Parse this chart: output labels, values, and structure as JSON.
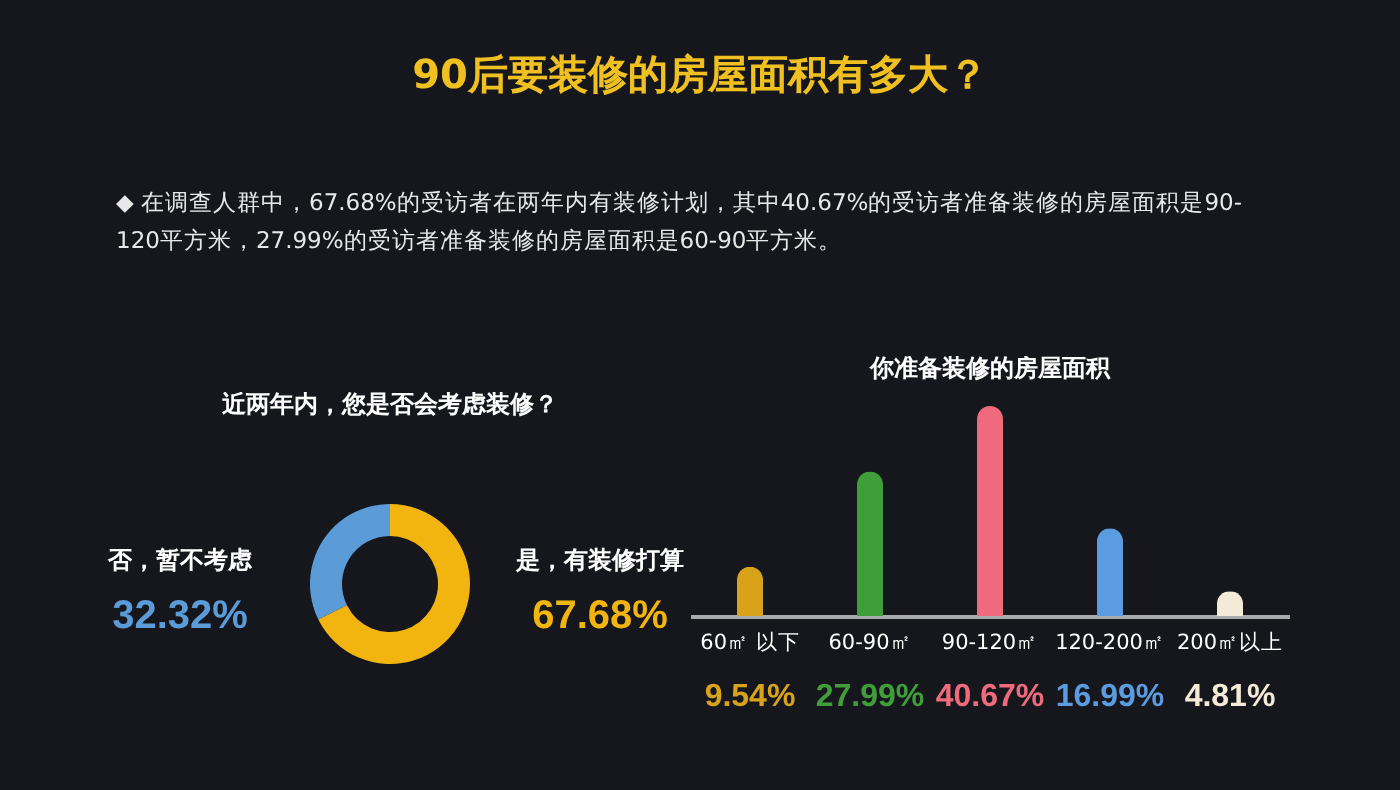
{
  "chart_data": [
    {
      "type": "other",
      "title": "90后要装修的房屋面积有多大？",
      "annotations": [
        "◆ 在调查人群中，67.68%的受访者在两年内有装修计划，其中40.67%的受访者准备装修的房屋面积是90-\n120平方米，27.99%的受访者准备装修的房屋面积是60-90平方米。"
      ]
    },
    {
      "type": "donut",
      "title": "近两年内，您是否会考虑装修？",
      "categories": [
        "否，暂不考虑",
        "是，有装修打算"
      ],
      "values": [
        32.32,
        67.68
      ],
      "colors": [
        "#5b9bd8",
        "#f2b40f"
      ],
      "value_labels": [
        "32.32%",
        "67.68%"
      ]
    },
    {
      "type": "bar",
      "title": "你准备装修的房屋面积",
      "categories": [
        "60㎡ 以下",
        "60-90㎡",
        "90-120㎡",
        "120-200㎡",
        "200㎡以上"
      ],
      "values": [
        9.54,
        27.99,
        40.67,
        16.99,
        4.81
      ],
      "colors": [
        "#d9a21b",
        "#3f9e3a",
        "#ef6a7c",
        "#5b9be0",
        "#f3ead8"
      ],
      "value_labels": [
        "9.54%",
        "27.99%",
        "40.67%",
        "16.99%",
        "4.81%"
      ]
    }
  ]
}
